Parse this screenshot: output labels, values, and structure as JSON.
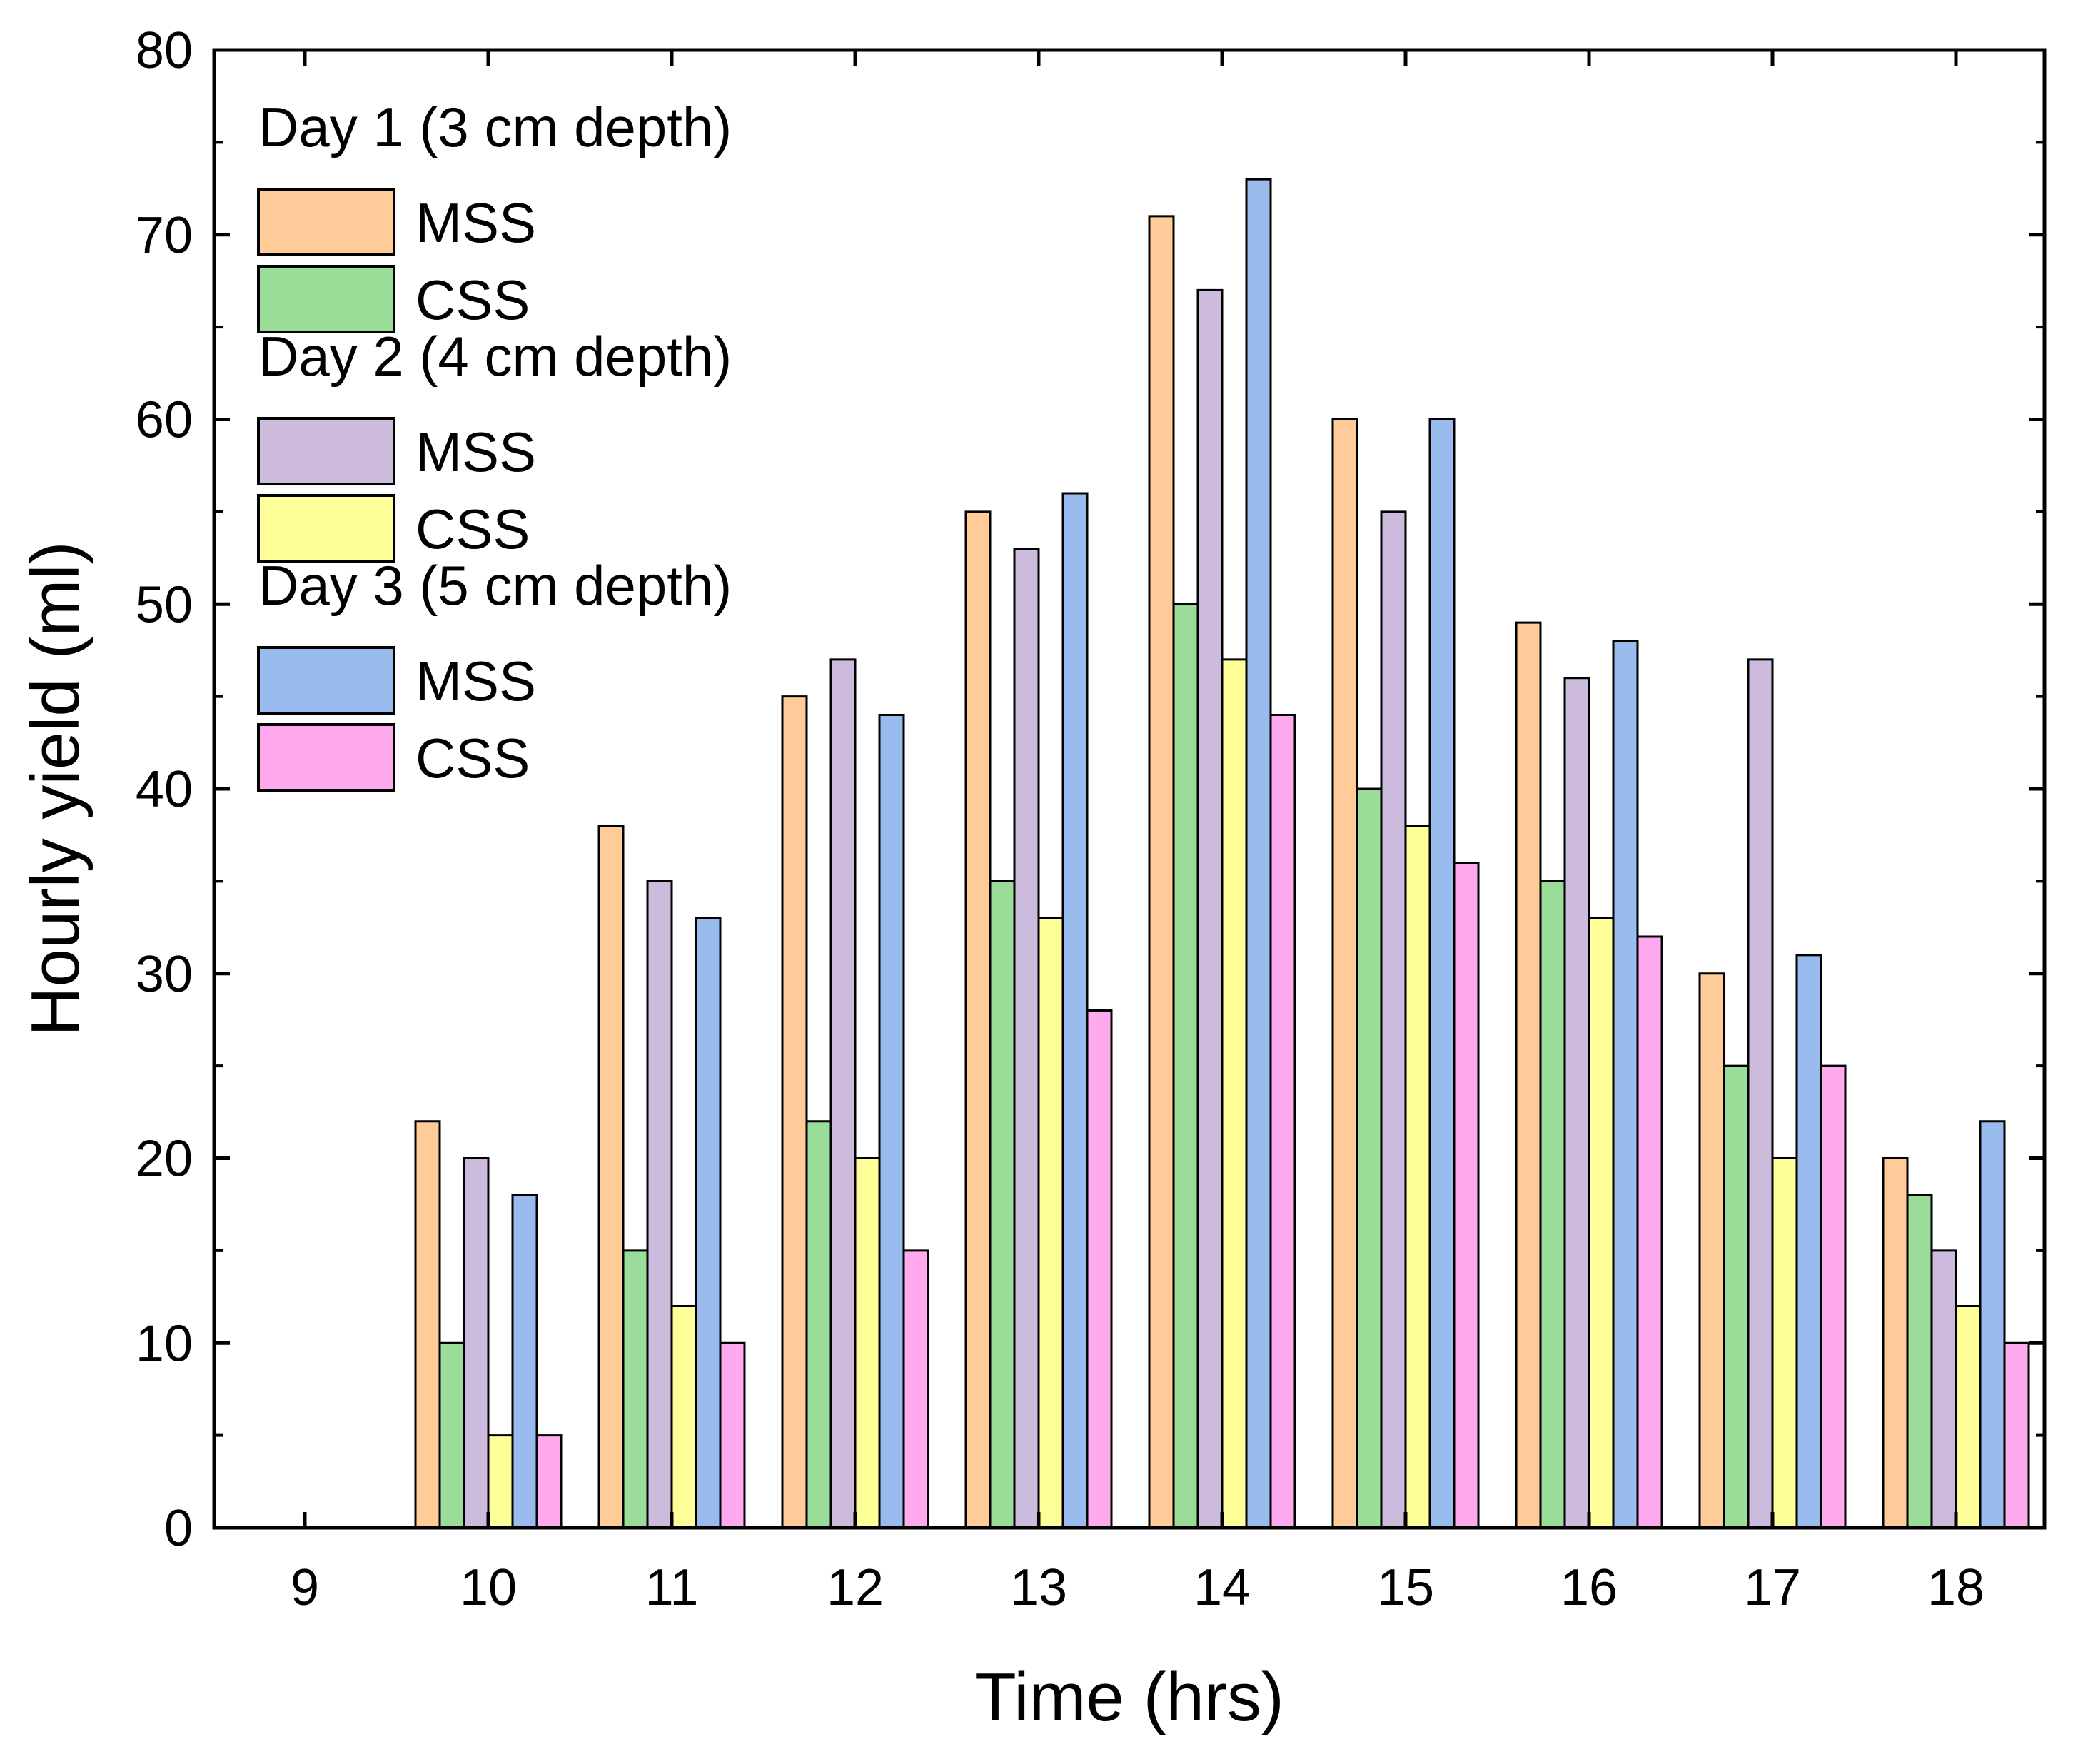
{
  "chart_data": {
    "type": "bar",
    "title": "",
    "xlabel": "Time (hrs)",
    "ylabel": "Hourly yield (ml)",
    "ylim": [
      0,
      80
    ],
    "yticks": [
      "0",
      "10",
      "20",
      "30",
      "40",
      "50",
      "60",
      "70",
      "80"
    ],
    "categories": [
      "9",
      "10",
      "11",
      "12",
      "13",
      "14",
      "15",
      "16",
      "17",
      "18"
    ],
    "legend": {
      "placement": "top-left",
      "groups": [
        {
          "title": "Day 1 (3 cm depth)",
          "entries": [
            "MSS",
            "CSS"
          ]
        },
        {
          "title": "Day 2 (4 cm depth)",
          "entries": [
            "MSS",
            "CSS"
          ]
        },
        {
          "title": "Day 3 (5 cm depth)",
          "entries": [
            "MSS",
            "CSS"
          ]
        }
      ]
    },
    "series": [
      {
        "name": "Day 1 MSS",
        "color": "#ffcc99",
        "values": [
          0,
          22,
          38,
          45,
          55,
          71,
          60,
          49,
          30,
          20
        ]
      },
      {
        "name": "Day 1 CSS",
        "color": "#99dd99",
        "values": [
          0,
          10,
          15,
          22,
          35,
          50,
          40,
          35,
          25,
          18
        ]
      },
      {
        "name": "Day 2 MSS",
        "color": "#ccbbdd",
        "values": [
          0,
          20,
          35,
          47,
          53,
          67,
          55,
          46,
          47,
          15
        ]
      },
      {
        "name": "Day 2 CSS",
        "color": "#ffff99",
        "values": [
          0,
          5,
          12,
          20,
          33,
          47,
          38,
          33,
          20,
          12
        ]
      },
      {
        "name": "Day 3 MSS",
        "color": "#99bbee",
        "values": [
          0,
          18,
          33,
          44,
          56,
          73,
          60,
          48,
          31,
          22
        ]
      },
      {
        "name": "Day 3 CSS",
        "color": "#ffaaee",
        "values": [
          0,
          5,
          10,
          15,
          28,
          44,
          36,
          32,
          25,
          10
        ]
      }
    ]
  }
}
